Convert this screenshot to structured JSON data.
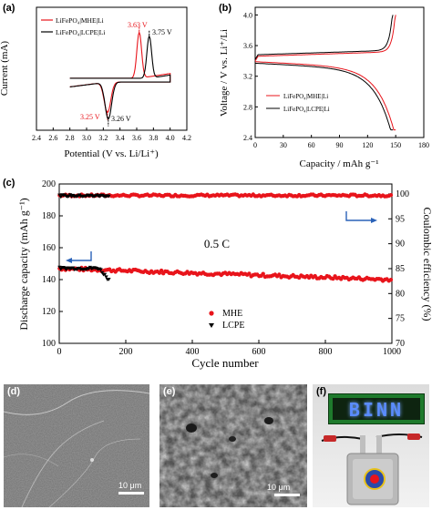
{
  "panels": {
    "a": {
      "label": "(a)",
      "legend": [
        "LiFePO₄|MHE|Li",
        "LiFePO₄|LCPE|Li"
      ],
      "annotations": {
        "mhe_ox": "3.63 V",
        "lcpe_ox": "3.75 V",
        "mhe_red": "3.25 V",
        "lcpe_red": "3.26 V"
      },
      "xlabel": "Potential (V vs. Li/Li⁺)",
      "ylabel": "Current (mA)",
      "xticks": [
        "2.4",
        "2.6",
        "2.8",
        "3.0",
        "3.2",
        "3.4",
        "3.6",
        "3.8",
        "4.0",
        "4.2"
      ]
    },
    "b": {
      "label": "(b)",
      "legend": [
        "LiFePO₄|MHE|Li",
        "LiFePO₄|LCPE|Li"
      ],
      "xlabel": "Capacity / mAh g⁻¹",
      "ylabel": "Voltage / V vs. Li⁺/Li",
      "xticks": [
        "0",
        "30",
        "60",
        "90",
        "120",
        "150",
        "180"
      ],
      "yticks": [
        "2.4",
        "2.8",
        "3.2",
        "3.6",
        "4.0"
      ]
    },
    "c": {
      "label": "(c)",
      "annotation": "0.5 C",
      "legend": [
        "MHE",
        "LCPE"
      ],
      "xlabel": "Cycle number",
      "ylabel_left": "Discharge capacity (mAh g⁻¹)",
      "ylabel_right": "Coulombic efficiency (%)",
      "xticks": [
        "0",
        "200",
        "400",
        "600",
        "800",
        "1000"
      ],
      "yticks_left": [
        "100",
        "120",
        "140",
        "160",
        "180",
        "200"
      ],
      "yticks_right": [
        "70",
        "75",
        "80",
        "85",
        "90",
        "95",
        "100"
      ]
    },
    "d": {
      "label": "(d)",
      "scale": "10 μm"
    },
    "e": {
      "label": "(e)",
      "scale": "10 μm"
    },
    "f": {
      "label": "(f)",
      "led_text": "BINN"
    }
  },
  "colors": {
    "mhe": "#e8141b",
    "lcpe": "#000000",
    "blue_arrow": "#2a62b8"
  },
  "chart_data": [
    {
      "type": "line",
      "title": "",
      "xlabel": "Potential (V vs. Li/Li⁺)",
      "ylabel": "Current (mA)",
      "xlim": [
        2.4,
        4.2
      ],
      "series": [
        {
          "name": "LiFePO₄|MHE|Li",
          "peaks": [
            {
              "x": 3.63,
              "y": 0.72
            },
            {
              "x": 3.25,
              "y": -0.48
            }
          ]
        },
        {
          "name": "LiFePO₄|LCPE|Li",
          "peaks": [
            {
              "x": 3.75,
              "y": 0.66
            },
            {
              "x": 3.26,
              "y": -0.58
            }
          ]
        }
      ]
    },
    {
      "type": "line",
      "xlabel": "Capacity / mAh g⁻¹",
      "ylabel": "Voltage / V vs. Li⁺/Li",
      "xlim": [
        0,
        180
      ],
      "ylim": [
        2.4,
        4.1
      ],
      "series": [
        {
          "name": "LiFePO₄|MHE|Li",
          "charge_plateau": 3.46,
          "discharge_plateau": 3.39,
          "capacity": 150
        },
        {
          "name": "LiFePO₄|LCPE|Li",
          "charge_plateau": 3.48,
          "discharge_plateau": 3.37,
          "capacity": 147
        }
      ]
    },
    {
      "type": "scatter",
      "xlabel": "Cycle number",
      "ylabel": "Discharge capacity (mAh g⁻¹)",
      "y2label": "Coulombic efficiency (%)",
      "xlim": [
        0,
        1000
      ],
      "ylim": [
        100,
        200
      ],
      "y2lim": [
        70,
        102
      ],
      "series": [
        {
          "name": "MHE",
          "capacity_start": 147,
          "capacity_end": 140,
          "coulombic_efficiency": 99.7,
          "cycles": 1000
        },
        {
          "name": "LCPE",
          "capacity_start": 147,
          "capacity_end": 140,
          "coulombic_efficiency": 99.6,
          "cycles": 150
        }
      ]
    }
  ]
}
